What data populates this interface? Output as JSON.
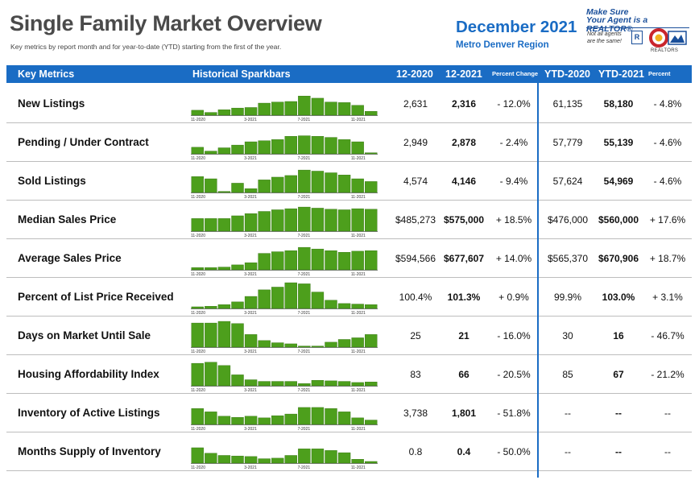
{
  "header": {
    "title": "Single Family Market Overview",
    "subtitle": "Key metrics by report month and for year-to-date (YTD) starting from the first of the year.",
    "date": "December 2021",
    "region": "Metro Denver Region"
  },
  "logo": {
    "line1": "Make Sure",
    "line2": "Your Agent is a REALTOR®",
    "note1": "Not all agents",
    "note2": "are the same!",
    "r_mark": "R",
    "org": "REALTORS"
  },
  "table": {
    "headers": {
      "key_metrics": "Key Metrics",
      "sparkbars": "Historical Sparkbars",
      "col1": "12-2020",
      "col2": "12-2021",
      "pct1": "Percent Change",
      "col4": "YTD-2020",
      "col5": "YTD-2021",
      "pct2": "Percent Change"
    },
    "spark_axis": [
      "11-2020",
      "3-2021",
      "7-2021",
      "11-2021"
    ],
    "rows": [
      {
        "metric": "New Listings",
        "v1": "2,631",
        "v2": "2,316",
        "pc1": "- 12.0%",
        "v4": "61,135",
        "v5": "58,180",
        "pc2": "- 4.8%",
        "spark": [
          18,
          10,
          20,
          26,
          28,
          44,
          48,
          50,
          70,
          62,
          48,
          46,
          36,
          14
        ]
      },
      {
        "metric": "Pending / Under Contract",
        "v1": "2,949",
        "v2": "2,878",
        "pc1": "- 2.4%",
        "v4": "57,779",
        "v5": "55,139",
        "pc2": "- 4.6%",
        "spark": [
          24,
          10,
          22,
          32,
          44,
          48,
          52,
          64,
          66,
          64,
          60,
          52,
          44,
          4
        ]
      },
      {
        "metric": "Sold Listings",
        "v1": "4,574",
        "v2": "4,146",
        "pc1": "- 9.4%",
        "v4": "57,624",
        "v5": "54,969",
        "pc2": "- 4.6%",
        "spark": [
          58,
          50,
          4,
          34,
          14,
          46,
          56,
          62,
          82,
          78,
          72,
          64,
          50,
          40
        ]
      },
      {
        "metric": "Median Sales Price",
        "v1": "$485,273",
        "v2": "$575,000",
        "pc1": "+ 18.5%",
        "v4": "$476,000",
        "v5": "$560,000",
        "pc2": "+ 17.6%",
        "spark": [
          46,
          46,
          46,
          56,
          64,
          72,
          78,
          82,
          88,
          84,
          80,
          78,
          82,
          80
        ]
      },
      {
        "metric": "Average Sales Price",
        "v1": "$594,566",
        "v2": "$677,607",
        "pc1": "+ 14.0%",
        "v4": "$565,370",
        "v5": "$670,906",
        "pc2": "+ 18.7%",
        "spark": [
          8,
          8,
          10,
          18,
          26,
          60,
          66,
          70,
          82,
          76,
          70,
          64,
          68,
          70
        ]
      },
      {
        "metric": "Percent of List Price Received",
        "v1": "100.4%",
        "v2": "101.3%",
        "pc1": "+ 0.9%",
        "v4": "99.9%",
        "v5": "103.0%",
        "pc2": "+ 3.1%",
        "spark": [
          6,
          8,
          14,
          24,
          44,
          68,
          78,
          94,
          90,
          60,
          30,
          18,
          16,
          14
        ]
      },
      {
        "metric": "Days on Market Until Sale",
        "v1": "25",
        "v2": "21",
        "pc1": "- 16.0%",
        "v4": "30",
        "v5": "16",
        "pc2": "- 46.7%",
        "spark": [
          88,
          88,
          94,
          86,
          46,
          24,
          16,
          12,
          4,
          4,
          18,
          28,
          34,
          46
        ]
      },
      {
        "metric": "Housing Affordability Index",
        "v1": "83",
        "v2": "66",
        "pc1": "- 20.5%",
        "v4": "85",
        "v5": "67",
        "pc2": "- 21.2%",
        "spark": [
          82,
          86,
          74,
          40,
          22,
          16,
          16,
          16,
          8,
          20,
          18,
          16,
          12,
          14
        ]
      },
      {
        "metric": "Inventory of Active Listings",
        "v1": "3,738",
        "v2": "1,801",
        "pc1": "- 51.8%",
        "v4": "--",
        "v5": "--",
        "pc2": "--",
        "spark": [
          58,
          46,
          30,
          26,
          30,
          24,
          32,
          38,
          62,
          62,
          58,
          46,
          24,
          16
        ]
      },
      {
        "metric": "Months Supply of Inventory",
        "v1": "0.8",
        "v2": "0.4",
        "pc1": "- 50.0%",
        "v4": "--",
        "v5": "--",
        "pc2": "--",
        "spark": [
          56,
          36,
          28,
          26,
          24,
          16,
          18,
          28,
          52,
          52,
          46,
          38,
          14,
          6
        ]
      }
    ]
  },
  "colors": {
    "accent": "#1a6cc4",
    "bar": "#4d9f1c",
    "bar_edge": "#2f6e0c"
  }
}
